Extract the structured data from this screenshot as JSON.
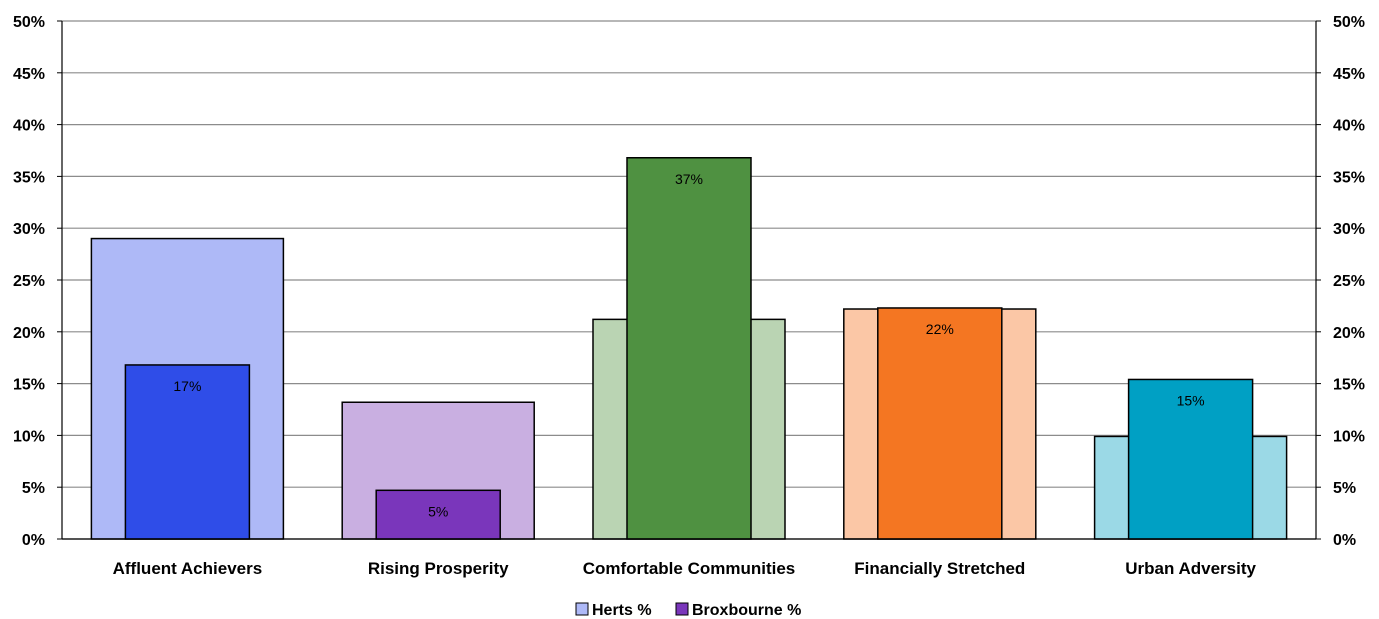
{
  "chart_data": {
    "type": "bar",
    "categories": [
      "Affluent Achievers",
      "Rising Prosperity",
      "Comfortable Communities",
      "Financially Stretched",
      "Urban Adversity"
    ],
    "series": [
      {
        "name": "Herts %",
        "values": [
          29,
          13.2,
          21.2,
          22.2,
          9.9
        ]
      },
      {
        "name": "Broxbourne %",
        "values": [
          16.8,
          4.7,
          36.8,
          22.3,
          15.4
        ]
      }
    ],
    "data_labels": [
      "17%",
      "5%",
      "37%",
      "22%",
      "15%"
    ],
    "ylim": [
      0,
      50
    ],
    "y_ticks": [
      "0%",
      "5%",
      "10%",
      "15%",
      "20%",
      "25%",
      "30%",
      "35%",
      "40%",
      "45%",
      "50%"
    ],
    "grid": true,
    "legend_position": "bottom",
    "colors": {
      "herts": [
        "#aeb9f7",
        "#c9afe1",
        "#bad4b3",
        "#fbc7a6",
        "#9bd9e6"
      ],
      "broxbourne": [
        "#2f4de8",
        "#7a36bb",
        "#4f9141",
        "#f47622",
        "#00a0c4"
      ],
      "grid": "#8c8c8c"
    }
  }
}
